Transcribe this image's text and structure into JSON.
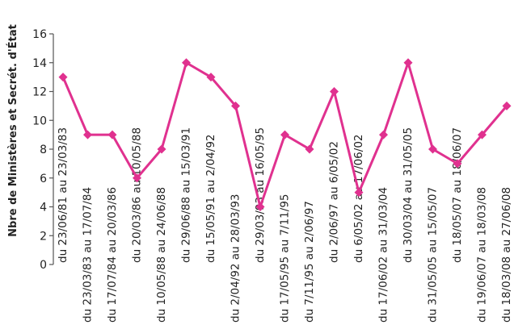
{
  "chart_data": {
    "type": "line",
    "ylabel": "Nbre de Ministères et Secrét. d'État",
    "xlabel": "",
    "ylim": [
      0,
      16
    ],
    "yticks": [
      0,
      2,
      4,
      6,
      8,
      10,
      12,
      14,
      16
    ],
    "grid": false,
    "legend": "none",
    "colors": {
      "series": "#e0318f",
      "axis": "#555555"
    },
    "categories": [
      "du 23/06/81 au 23/03/83",
      "du 23/03/83 au 17/07/84",
      "du 17/07/84 au 20/03/86",
      "du 20/03/86 au 10/05/88",
      "du 10/05/88 au 24/06/88",
      "du 29/06/88 au 15/03/91",
      "du 15/05/91 au 2/04/92",
      "du 2/04/92 au 28/03/93",
      "du 29/03/93 au 16/05/95",
      "du 17/05/95 au 7/11/95",
      "du 7/11/95 au 2/06/97",
      "du 2/06/97 au 6/05/02",
      "du 6/05/02 au 17/06/02",
      "du 17/06/02 au 31/03/04",
      "du 30/03/04 au 31/05/05",
      "du 31/05/05 au 15/05/07",
      "du 18/05/07 au 18/06/07",
      "du 19/06/07 au 18/03/08",
      "du 18/03/08 au 27/06/08"
    ],
    "values": [
      13,
      9,
      9,
      6,
      8,
      14,
      13,
      11,
      4,
      9,
      8,
      12,
      5,
      9,
      14,
      8,
      7,
      9,
      11
    ]
  }
}
